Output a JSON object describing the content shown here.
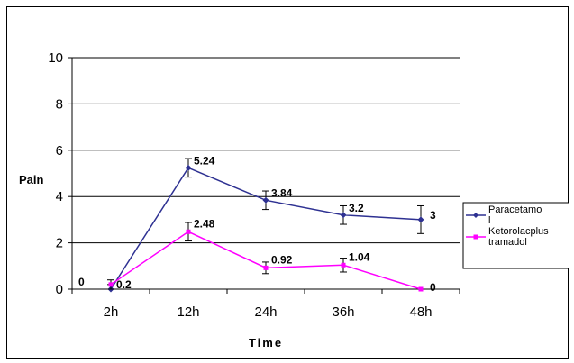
{
  "chart_data": {
    "type": "line",
    "title": "",
    "xlabel": "Time",
    "ylabel": "Pain",
    "categories": [
      "2h",
      "12h",
      "24h",
      "36h",
      "48h"
    ],
    "ylim": [
      0,
      10
    ],
    "yticks": [
      "0",
      "2",
      "4",
      "6",
      "8",
      "10"
    ],
    "grid": "horizontal",
    "legend_position": "right",
    "series": [
      {
        "name_lines": [
          "Paracetamo",
          "l"
        ],
        "color": "#2e3192",
        "marker": "diamond",
        "values": [
          0,
          5.24,
          3.84,
          3.2,
          3
        ],
        "labels": [
          "0",
          "5.24",
          "3.84",
          "3.2",
          "3"
        ],
        "error": [
          0.2,
          0.4,
          0.4,
          0.4,
          0.6
        ]
      },
      {
        "name_lines": [
          "Ketorolacplus",
          "tramadol"
        ],
        "color": "#ff00ff",
        "marker": "square",
        "values": [
          0.2,
          2.48,
          0.92,
          1.04,
          0
        ],
        "labels": [
          "0.2",
          "2.48",
          "0.92",
          "1.04",
          "0"
        ],
        "error": [
          0.2,
          0.4,
          0.25,
          0.3,
          0
        ]
      }
    ]
  }
}
